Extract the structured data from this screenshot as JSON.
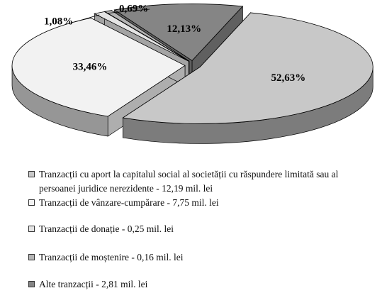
{
  "chart_data": {
    "type": "pie",
    "categories": [
      "Tranzacții cu aport la capitalul social al societății cu răspundere limitată sau al persoanei juridice nerezidente - 12,19 mil. lei",
      "Tranzacții de vânzare-cumpărare - 7,75 mil. lei",
      "Tranzacții de donație - 0,25 mil. lei",
      "Tranzacții de moștenire - 0,16 mil. lei",
      "Alte tranzacții - 2,81 mil. lei"
    ],
    "values": [
      52.63,
      33.46,
      1.08,
      0.69,
      12.13
    ],
    "value_labels": [
      "52,63%",
      "33,46%",
      "1,08%",
      "0,69%",
      "12,13%"
    ],
    "colors": [
      "#c8c8c8",
      "#f2f2f2",
      "#e4e4e4",
      "#b4b4b4",
      "#858585"
    ]
  }
}
